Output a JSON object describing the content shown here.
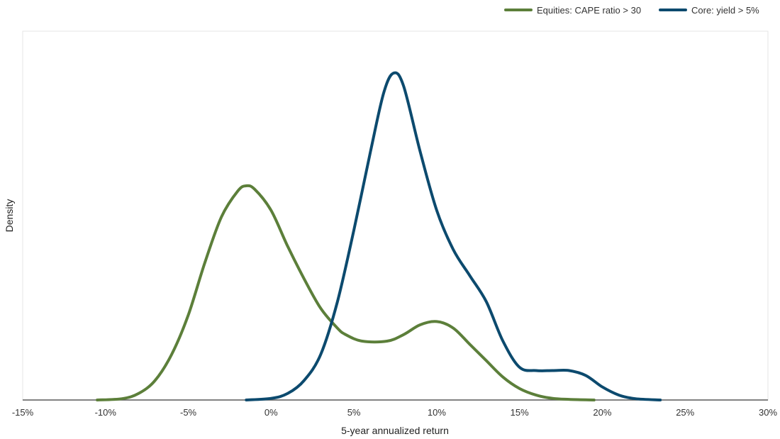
{
  "chart_data": {
    "type": "line",
    "xlabel": "5-year annualized return",
    "ylabel": "Density",
    "xlim": [
      -15,
      30
    ],
    "ylim": [
      0,
      1
    ],
    "x_ticks": [
      -15,
      -10,
      -5,
      0,
      5,
      10,
      15,
      20,
      25,
      30
    ],
    "x_tick_labels": [
      "-15%",
      "-10%",
      "-5%",
      "0%",
      "5%",
      "10%",
      "15%",
      "20%",
      "25%",
      "30%"
    ],
    "grid": false,
    "legend_position": "top-right",
    "series": [
      {
        "name": "Equities: CAPE ratio > 30",
        "color": "#5c7f3a",
        "points": [
          [
            -10.5,
            0.0
          ],
          [
            -9,
            0.004
          ],
          [
            -8,
            0.02
          ],
          [
            -7,
            0.06
          ],
          [
            -6,
            0.14
          ],
          [
            -5,
            0.26
          ],
          [
            -4,
            0.42
          ],
          [
            -3,
            0.56
          ],
          [
            -2,
            0.64
          ],
          [
            -1.5,
            0.655
          ],
          [
            -1,
            0.645
          ],
          [
            0,
            0.58
          ],
          [
            1,
            0.47
          ],
          [
            2,
            0.37
          ],
          [
            3,
            0.28
          ],
          [
            4,
            0.22
          ],
          [
            4.5,
            0.2
          ],
          [
            5.5,
            0.18
          ],
          [
            7,
            0.18
          ],
          [
            8,
            0.2
          ],
          [
            9,
            0.23
          ],
          [
            10,
            0.24
          ],
          [
            11,
            0.22
          ],
          [
            12,
            0.17
          ],
          [
            13,
            0.12
          ],
          [
            14,
            0.07
          ],
          [
            15,
            0.035
          ],
          [
            16,
            0.015
          ],
          [
            17,
            0.005
          ],
          [
            18,
            0.002
          ],
          [
            19.5,
            0.0
          ]
        ]
      },
      {
        "name": "Core: yield > 5%",
        "color": "#0c4a6e",
        "points": [
          [
            -1.5,
            0.0
          ],
          [
            0,
            0.005
          ],
          [
            1,
            0.02
          ],
          [
            2,
            0.06
          ],
          [
            3,
            0.14
          ],
          [
            4,
            0.3
          ],
          [
            5,
            0.52
          ],
          [
            6,
            0.76
          ],
          [
            6.8,
            0.94
          ],
          [
            7.4,
            1.0
          ],
          [
            8,
            0.96
          ],
          [
            9,
            0.76
          ],
          [
            10,
            0.58
          ],
          [
            11,
            0.46
          ],
          [
            12,
            0.38
          ],
          [
            13,
            0.3
          ],
          [
            14,
            0.18
          ],
          [
            15,
            0.1
          ],
          [
            16,
            0.09
          ],
          [
            17,
            0.09
          ],
          [
            18,
            0.09
          ],
          [
            19,
            0.075
          ],
          [
            20,
            0.04
          ],
          [
            21,
            0.015
          ],
          [
            22,
            0.004
          ],
          [
            23.5,
            0.0
          ]
        ]
      }
    ]
  }
}
